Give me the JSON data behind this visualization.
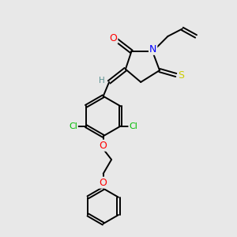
{
  "bg_color": "#e8e8e8",
  "bond_color": "#000000",
  "bond_lw": 1.4,
  "atom_colors": {
    "O": "#ff0000",
    "N": "#0000ff",
    "S": "#cccc00",
    "Cl": "#00bb00",
    "C": "#000000",
    "H": "#5a9090"
  },
  "font_size": 8.0
}
